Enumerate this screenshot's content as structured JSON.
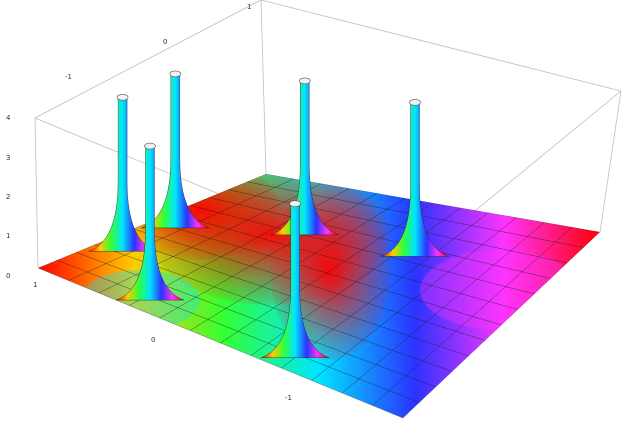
{
  "chart_data": {
    "type": "surface3d",
    "description_from_axes": true,
    "x_axis": {
      "ticks": [
        -1,
        0,
        1
      ],
      "range": [
        -1.5,
        1.5
      ]
    },
    "y_axis": {
      "ticks": [
        -1,
        0,
        1
      ],
      "range": [
        -1.5,
        1.5
      ]
    },
    "z_axis": {
      "ticks": [
        0,
        1,
        2,
        3,
        4
      ],
      "range": [
        0,
        4
      ]
    },
    "coloring": "hue by complex argument (phase)",
    "poles": [
      {
        "x": -1.3,
        "y": -0.7
      },
      {
        "x": -0.7,
        "y": -1.3
      },
      {
        "x": 0.0,
        "y": -1.3
      },
      {
        "x": -1.3,
        "y": 0.5
      },
      {
        "x": 0.6,
        "y": 0.4
      },
      {
        "x": 0.5,
        "y": -0.5
      }
    ],
    "pole_top_value": 4,
    "surface_base_value": 0.3
  }
}
